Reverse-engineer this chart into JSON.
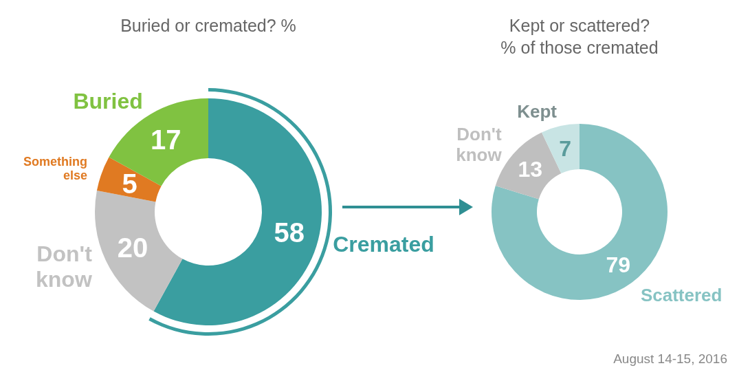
{
  "chart_data": [
    {
      "type": "donut",
      "title": "Buried or cremated? %",
      "categories": [
        "Cremated",
        "Don't know",
        "Something else",
        "Buried"
      ],
      "values": [
        58,
        20,
        5,
        17
      ],
      "colors": [
        "#3a9ea0",
        "#c2c2c2",
        "#e07a22",
        "#80c241"
      ],
      "data_labels": true
    },
    {
      "type": "donut",
      "title": "Kept or scattered?",
      "subtitle": "% of those cremated",
      "categories": [
        "Scattered",
        "Don't know",
        "Kept"
      ],
      "values": [
        79,
        13,
        7
      ],
      "colors": [
        "#86c3c3",
        "#bfbfbf",
        "#c8e4e4"
      ],
      "data_labels": true,
      "annotations": [
        "August 14-15, 2016"
      ]
    }
  ]
}
